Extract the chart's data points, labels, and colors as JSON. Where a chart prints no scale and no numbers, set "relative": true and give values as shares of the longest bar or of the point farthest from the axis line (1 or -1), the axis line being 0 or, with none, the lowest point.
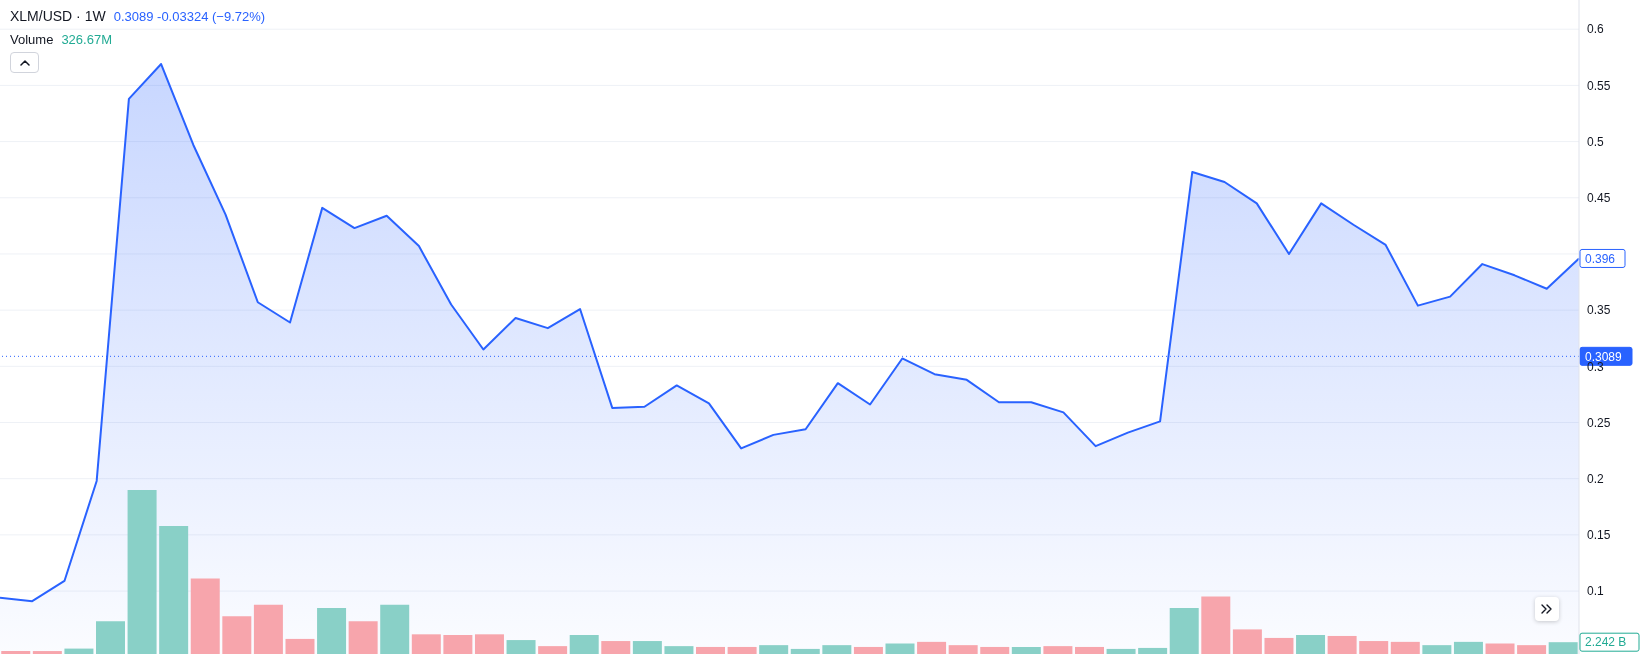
{
  "chart_data": [
    {
      "type": "area",
      "title": "XLM/USD · 1W",
      "subtitle": "0.3089 -0.03324 (−9.72%)",
      "categories": [
        null,
        null,
        null,
        null,
        null,
        null,
        null,
        null,
        null,
        null,
        null,
        null,
        null,
        null,
        null,
        null,
        null,
        null,
        null,
        null,
        null,
        null,
        null,
        null,
        null,
        null,
        null,
        null,
        null,
        null,
        null,
        null,
        null,
        null,
        null,
        null,
        null,
        null,
        null,
        null,
        null,
        null,
        null,
        null,
        null,
        null,
        null,
        null,
        null,
        null
      ],
      "values": [
        0.094,
        0.091,
        0.109,
        0.198,
        0.538,
        0.569,
        0.497,
        0.435,
        0.357,
        0.339,
        0.441,
        0.423,
        0.434,
        0.407,
        0.355,
        0.315,
        0.343,
        0.334,
        0.351,
        0.263,
        0.264,
        0.283,
        0.267,
        0.227,
        0.239,
        0.244,
        0.285,
        0.266,
        0.307,
        0.293,
        0.288,
        0.268,
        0.268,
        0.259,
        0.229,
        0.241,
        0.251,
        0.473,
        0.464,
        0.445,
        0.4,
        0.445,
        0.426,
        0.408,
        0.354,
        0.362,
        0.391,
        0.381,
        0.369,
        0.396
      ],
      "color": "#2962ff",
      "value_labels": [
        null,
        null,
        null,
        null,
        null,
        null,
        null,
        null,
        null,
        null,
        null,
        null,
        null,
        null,
        null,
        null,
        null,
        null,
        null,
        null,
        null,
        null,
        null,
        null,
        null,
        null,
        null,
        null,
        null,
        null,
        null,
        null,
        null,
        null,
        null,
        null,
        null,
        null,
        null,
        null,
        null,
        null,
        null,
        null,
        null,
        null,
        null,
        null,
        null,
        "0.396"
      ],
      "ylim": [
        0.044,
        0.626
      ],
      "yticks": [
        0.1,
        0.15,
        0.2,
        0.25,
        0.3,
        0.35,
        {
          "value": 0.4,
          "label": null
        },
        0.45,
        0.5,
        0.55,
        0.6
      ],
      "ref_lines": [
        {
          "axis": "y",
          "value": 0.3089,
          "label": "0.3089",
          "color": "#2962ff",
          "line_style": "dotted"
        }
      ],
      "grid": "y",
      "tick_labels": "y"
    },
    {
      "type": "bar",
      "title": "Volume",
      "annotations": [
        "326.67M",
        "2.242 B"
      ],
      "relative": true,
      "tick_labels": false,
      "categories": [
        null,
        null,
        null,
        null,
        null,
        null,
        null,
        null,
        null,
        null,
        null,
        null,
        null,
        null,
        null,
        null,
        null,
        null,
        null,
        null,
        null,
        null,
        null,
        null,
        null,
        null,
        null,
        null,
        null,
        null,
        null,
        null,
        null,
        null,
        null,
        null,
        null,
        null,
        null,
        null,
        null,
        null,
        null,
        null,
        null,
        null,
        null,
        null,
        null,
        null
      ],
      "values": [
        0.018,
        0.018,
        0.033,
        0.2,
        1,
        0.78,
        0.46,
        0.23,
        0.3,
        0.092,
        0.28,
        0.2,
        0.3,
        0.12,
        0.116,
        0.12,
        0.085,
        0.048,
        0.116,
        0.079,
        0.079,
        0.048,
        0.043,
        0.043,
        0.054,
        0.031,
        0.054,
        0.043,
        0.064,
        0.074,
        0.054,
        0.043,
        0.043,
        0.048,
        0.043,
        0.031,
        0.037,
        0.28,
        0.35,
        0.15,
        0.098,
        0.116,
        0.11,
        0.079,
        0.074,
        0.054,
        0.074,
        0.064,
        0.054,
        0.072
      ],
      "colors": [
        "#f7a5ac",
        "#f7a5ac",
        "#89d0c7",
        "#89d0c7",
        "#89d0c7",
        "#89d0c7",
        "#f7a5ac",
        "#f7a5ac",
        "#f7a5ac",
        "#f7a5ac",
        "#89d0c7",
        "#f7a5ac",
        "#89d0c7",
        "#f7a5ac",
        "#f7a5ac",
        "#f7a5ac",
        "#89d0c7",
        "#f7a5ac",
        "#89d0c7",
        "#f7a5ac",
        "#89d0c7",
        "#89d0c7",
        "#f7a5ac",
        "#f7a5ac",
        "#89d0c7",
        "#89d0c7",
        "#89d0c7",
        "#f7a5ac",
        "#89d0c7",
        "#f7a5ac",
        "#f7a5ac",
        "#f7a5ac",
        "#89d0c7",
        "#f7a5ac",
        "#f7a5ac",
        "#89d0c7",
        "#89d0c7",
        "#89d0c7",
        "#f7a5ac",
        "#f7a5ac",
        "#f7a5ac",
        "#89d0c7",
        "#f7a5ac",
        "#f7a5ac",
        "#f7a5ac",
        "#89d0c7",
        "#89d0c7",
        "#f7a5ac",
        "#f7a5ac",
        "#89d0c7"
      ]
    }
  ]
}
